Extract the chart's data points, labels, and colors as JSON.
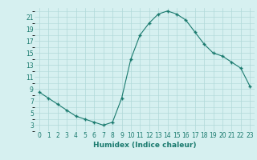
{
  "x": [
    0,
    1,
    2,
    3,
    4,
    5,
    6,
    7,
    8,
    9,
    10,
    11,
    12,
    13,
    14,
    15,
    16,
    17,
    18,
    19,
    20,
    21,
    22,
    23
  ],
  "y": [
    8.5,
    7.5,
    6.5,
    5.5,
    4.5,
    4.0,
    3.5,
    3.0,
    3.5,
    7.5,
    14.0,
    18.0,
    20.0,
    21.5,
    22.0,
    21.5,
    20.5,
    18.5,
    16.5,
    15.0,
    14.5,
    13.5,
    12.5,
    9.5
  ],
  "line_color": "#1a7a6e",
  "marker": "+",
  "bg_color": "#d6f0f0",
  "grid_color": "#b0d8d8",
  "xlabel": "Humidex (Indice chaleur)",
  "xlim": [
    -0.5,
    23.5
  ],
  "ylim": [
    2,
    22.5
  ],
  "yticks": [
    3,
    5,
    7,
    9,
    11,
    13,
    15,
    17,
    19,
    21
  ],
  "xticks": [
    0,
    1,
    2,
    3,
    4,
    5,
    6,
    7,
    8,
    9,
    10,
    11,
    12,
    13,
    14,
    15,
    16,
    17,
    18,
    19,
    20,
    21,
    22,
    23
  ],
  "label_fontsize": 6.5,
  "tick_fontsize": 5.5
}
